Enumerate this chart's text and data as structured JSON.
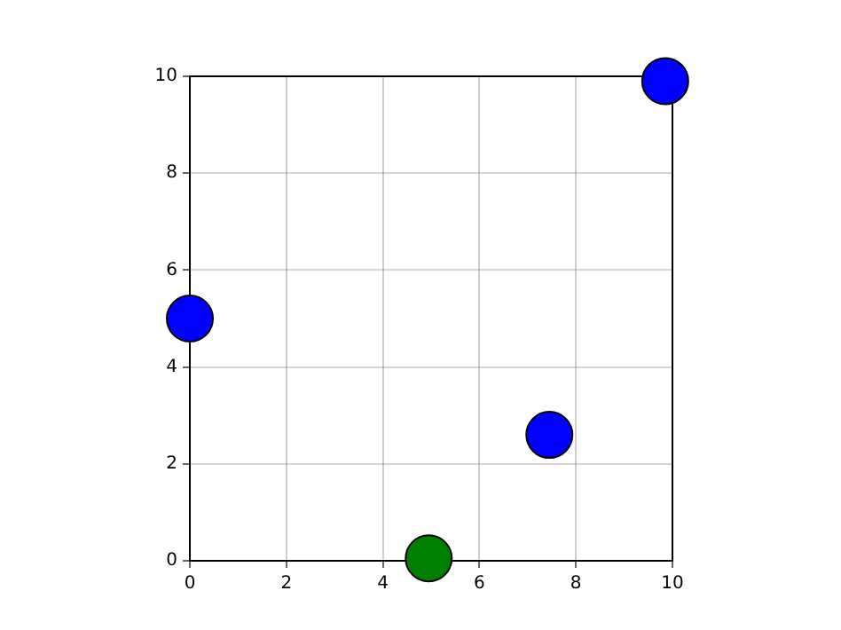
{
  "chart_data": {
    "type": "scatter",
    "x": [
      0,
      9.85,
      7.45,
      4.95
    ],
    "values": [
      5,
      9.9,
      2.6,
      0.05
    ],
    "colors": [
      "#0000ff",
      "#0000ff",
      "#0000ff",
      "#008000"
    ],
    "marker": "circle",
    "xlim": [
      0,
      10
    ],
    "ylim": [
      0,
      10
    ],
    "xticks": [
      0,
      2,
      4,
      6,
      8,
      10
    ],
    "yticks": [
      0,
      2,
      4,
      6,
      8,
      10
    ],
    "grid": true
  }
}
